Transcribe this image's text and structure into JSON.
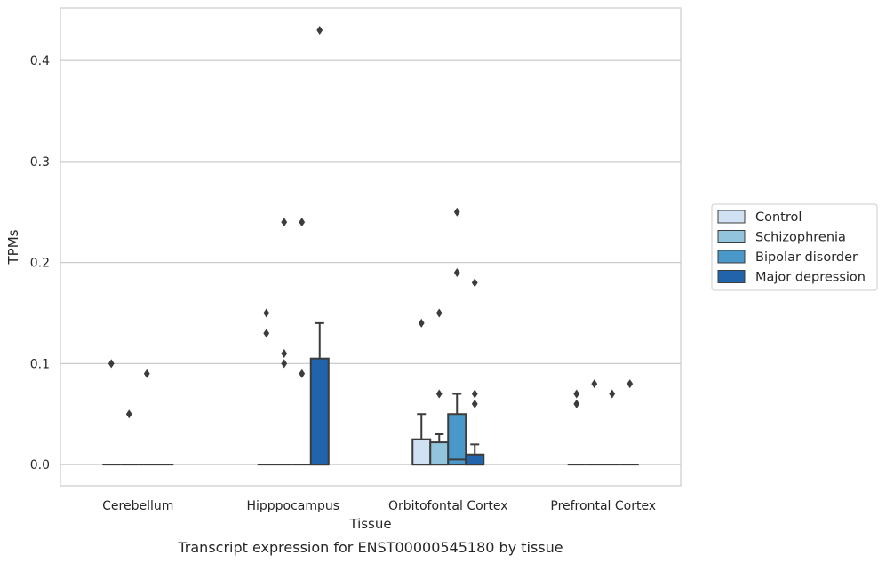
{
  "caption": "Transcript expression for ENST00000545180 by tissue",
  "chart_data": {
    "type": "box",
    "xlabel": "Tissue",
    "ylabel": "TPMs",
    "ylim": [
      -0.021,
      0.452
    ],
    "yticks": [
      0.0,
      0.1,
      0.2,
      0.3,
      0.4
    ],
    "ytick_labels": [
      "0.0",
      "0.1",
      "0.2",
      "0.3",
      "0.4"
    ],
    "grid": "horizontal",
    "legend_position": "right",
    "categories": [
      "Cerebellum",
      "Hipppocampus",
      "Orbitofontal Cortex",
      "Prefrontal Cortex"
    ],
    "series": [
      {
        "name": "Control",
        "color": "#cfe1f2",
        "boxes": [
          {
            "q1": 0,
            "median": 0,
            "q3": 0,
            "whisker_low": 0,
            "whisker_high": 0,
            "outliers": [
              0.1
            ]
          },
          {
            "q1": 0,
            "median": 0,
            "q3": 0,
            "whisker_low": 0,
            "whisker_high": 0,
            "outliers": [
              0.15,
              0.13
            ]
          },
          {
            "q1": 0,
            "median": 0,
            "q3": 0.025,
            "whisker_low": 0,
            "whisker_high": 0.05,
            "outliers": [
              0.14
            ]
          },
          {
            "q1": 0,
            "median": 0,
            "q3": 0,
            "whisker_low": 0,
            "whisker_high": 0,
            "outliers": [
              0.07,
              0.06
            ]
          }
        ]
      },
      {
        "name": "Schizophrenia",
        "color": "#93c4de",
        "boxes": [
          {
            "q1": 0,
            "median": 0,
            "q3": 0,
            "whisker_low": 0,
            "whisker_high": 0,
            "outliers": [
              0.05
            ]
          },
          {
            "q1": 0,
            "median": 0,
            "q3": 0,
            "whisker_low": 0,
            "whisker_high": 0,
            "outliers": [
              0.24,
              0.11,
              0.1
            ]
          },
          {
            "q1": 0,
            "median": 0,
            "q3": 0.022,
            "whisker_low": 0,
            "whisker_high": 0.03,
            "outliers": [
              0.15,
              0.07
            ]
          },
          {
            "q1": 0,
            "median": 0,
            "q3": 0,
            "whisker_low": 0,
            "whisker_high": 0,
            "outliers": [
              0.08
            ]
          }
        ]
      },
      {
        "name": "Bipolar disorder",
        "color": "#4a98c9",
        "boxes": [
          {
            "q1": 0,
            "median": 0,
            "q3": 0,
            "whisker_low": 0,
            "whisker_high": 0,
            "outliers": [
              0.09
            ]
          },
          {
            "q1": 0,
            "median": 0,
            "q3": 0,
            "whisker_low": 0,
            "whisker_high": 0,
            "outliers": [
              0.24,
              0.09
            ]
          },
          {
            "q1": 0,
            "median": 0.005,
            "q3": 0.05,
            "whisker_low": 0,
            "whisker_high": 0.07,
            "outliers": [
              0.25,
              0.19
            ]
          },
          {
            "q1": 0,
            "median": 0,
            "q3": 0,
            "whisker_low": 0,
            "whisker_high": 0,
            "outliers": [
              0.07
            ]
          }
        ]
      },
      {
        "name": "Major depression",
        "color": "#2164ab",
        "boxes": [
          {
            "q1": 0,
            "median": 0,
            "q3": 0,
            "whisker_low": 0,
            "whisker_high": 0,
            "outliers": []
          },
          {
            "q1": 0,
            "median": 0,
            "q3": 0.105,
            "whisker_low": 0,
            "whisker_high": 0.14,
            "outliers": [
              0.43
            ]
          },
          {
            "q1": 0,
            "median": 0,
            "q3": 0.01,
            "whisker_low": 0,
            "whisker_high": 0.02,
            "outliers": [
              0.18,
              0.07,
              0.06
            ]
          },
          {
            "q1": 0,
            "median": 0,
            "q3": 0,
            "whisker_low": 0,
            "whisker_high": 0,
            "outliers": [
              0.08
            ]
          }
        ]
      }
    ]
  }
}
